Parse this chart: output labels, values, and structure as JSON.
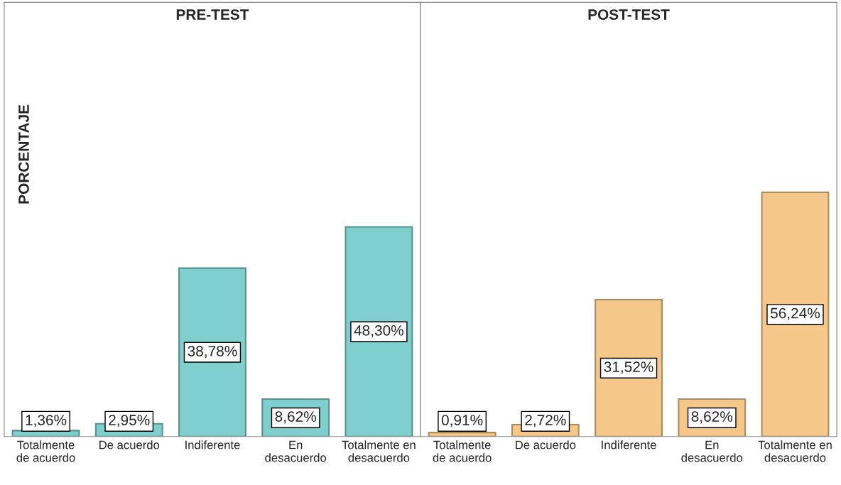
{
  "chart_data": [
    {
      "type": "bar",
      "title": "PRE-TEST",
      "ylabel": "PORCENTAJE",
      "categories": [
        "Totalmente\nde acuerdo",
        "De acuerdo",
        "Indiferente",
        "En\ndesacuerdo",
        "Totalmente en\ndesacuerdo"
      ],
      "values": [
        1.36,
        2.95,
        38.78,
        8.62,
        48.3
      ],
      "value_labels": [
        "1,36%",
        "2,95%",
        "38,78%",
        "8,62%",
        "48,30%"
      ],
      "color": "#7fcfcf",
      "ylim": [
        0,
        100
      ],
      "tick_labels": "x",
      "grid": false,
      "legend": false
    },
    {
      "type": "bar",
      "title": "POST-TEST",
      "categories": [
        "Totalmente\nde acuerdo",
        "De acuerdo",
        "Indiferente",
        "En\ndesacuerdo",
        "Totalmente en\ndesacuerdo"
      ],
      "values": [
        0.91,
        2.72,
        31.52,
        8.62,
        56.24
      ],
      "value_labels": [
        "0,91%",
        "2,72%",
        "31,52%",
        "8,62%",
        "56,24%"
      ],
      "color": "#f5c88a",
      "ylim": [
        0,
        100
      ],
      "tick_labels": "x",
      "grid": false,
      "legend": false
    }
  ]
}
